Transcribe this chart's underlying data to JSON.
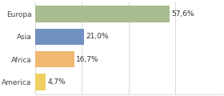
{
  "categories": [
    "America",
    "Africa",
    "Asia",
    "Europa"
  ],
  "values": [
    4.7,
    16.7,
    21.0,
    57.6
  ],
  "labels": [
    "4,7%",
    "16,7%",
    "21,0%",
    "57,6%"
  ],
  "colors": [
    "#f0d060",
    "#f0b870",
    "#7090c0",
    "#a8bc90"
  ],
  "xlim": [
    0,
    80
  ],
  "background_color": "#ffffff",
  "label_fontsize": 6.5,
  "tick_fontsize": 6.5,
  "bar_height": 0.72
}
